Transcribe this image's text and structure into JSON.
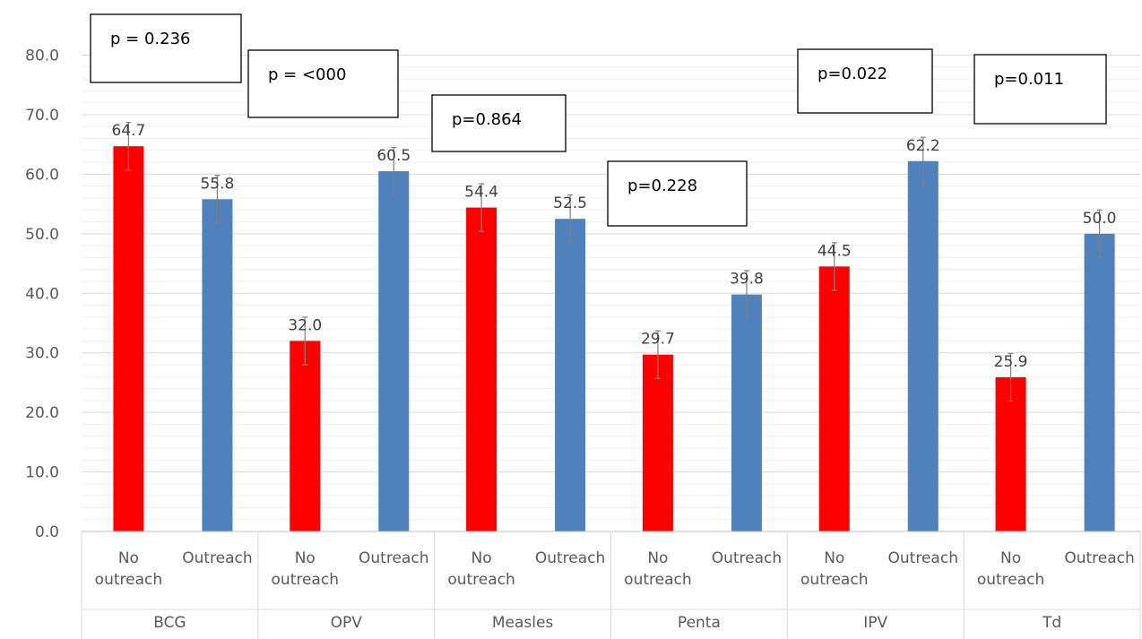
{
  "chart_data": {
    "type": "bar",
    "groups": [
      "BCG",
      "OPV",
      "Measles",
      "Penta",
      "IPV",
      "Td"
    ],
    "subcategories": [
      "No\noutreach",
      "Outreach"
    ],
    "series": [
      {
        "values": [
          64.7,
          32.0,
          54.4,
          29.7,
          44.5,
          25.9
        ],
        "color": "#ff0000"
      },
      {
        "values": [
          55.8,
          60.5,
          52.5,
          39.8,
          62.2,
          50.0
        ],
        "color": "#4f81bd"
      }
    ],
    "data_labels": [
      [
        "64.7",
        "55.8"
      ],
      [
        "32.0",
        "60.5"
      ],
      [
        "54.4",
        "52.5"
      ],
      [
        "29.7",
        "39.8"
      ],
      [
        "44.5",
        "62.2"
      ],
      [
        "25.9",
        "50.0"
      ]
    ],
    "error_bar": 4,
    "p_values": [
      "p = 0.236",
      "p = <000",
      "p=0.864",
      "p=0.228",
      "p=0.022",
      "p=0.011"
    ],
    "ylim": [
      0,
      80
    ],
    "yticks": [
      "0.0",
      "10.0",
      "20.0",
      "30.0",
      "40.0",
      "50.0",
      "60.0",
      "70.0",
      "80.0"
    ],
    "ytick_values": [
      0,
      10,
      20,
      30,
      40,
      50,
      60,
      70,
      80
    ],
    "minor_grid_step": 2,
    "grid": true,
    "legend": "none",
    "title": "",
    "xlabel": "",
    "ylabel": ""
  }
}
